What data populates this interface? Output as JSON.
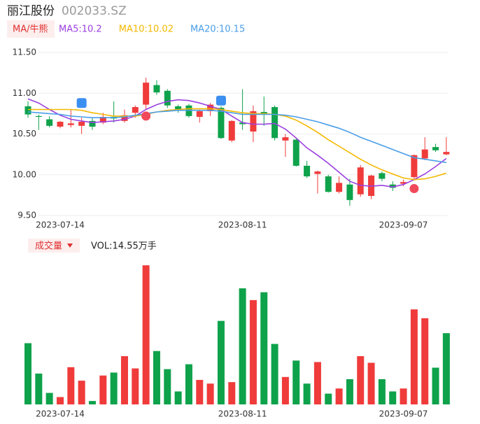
{
  "chart_data": [
    {
      "type": "candlestick",
      "title": "丽江股份",
      "subtitle": "002033.SZ",
      "legend_title": "MA/牛熊",
      "categories": [
        null,
        null,
        null,
        "2023-07-14",
        null,
        null,
        null,
        null,
        null,
        null,
        null,
        null,
        null,
        null,
        null,
        null,
        null,
        null,
        null,
        null,
        "2023-08-11",
        null,
        null,
        null,
        null,
        null,
        null,
        null,
        null,
        null,
        null,
        null,
        null,
        null,
        null,
        "2023-09-07",
        null,
        null,
        null,
        null
      ],
      "open": [
        10.84,
        10.72,
        10.68,
        10.59,
        10.61,
        10.6,
        10.66,
        10.64,
        10.71,
        10.66,
        10.76,
        10.86,
        11.1,
        11.03,
        10.84,
        10.85,
        10.71,
        10.78,
        10.82,
        10.42,
        10.64,
        10.53,
        10.77,
        10.83,
        10.42,
        10.43,
        10.11,
        10.01,
        9.98,
        9.79,
        9.88,
        9.76,
        9.74,
        10.02,
        9.88,
        9.89,
        9.97,
        10.2,
        10.34,
        10.25
      ],
      "high": [
        10.9,
        10.74,
        10.72,
        10.66,
        10.8,
        10.7,
        10.7,
        10.76,
        10.9,
        10.8,
        10.85,
        11.19,
        11.16,
        11.05,
        10.86,
        10.87,
        10.8,
        10.88,
        10.84,
        10.67,
        11.05,
        10.85,
        10.96,
        10.85,
        10.5,
        10.44,
        10.17,
        10.05,
        10.0,
        9.98,
        9.95,
        10.12,
        10.0,
        10.04,
        9.92,
        9.94,
        10.25,
        10.46,
        10.38,
        10.46
      ],
      "low": [
        10.7,
        10.55,
        10.58,
        10.57,
        10.58,
        10.5,
        10.55,
        10.62,
        10.64,
        10.64,
        10.7,
        10.8,
        10.98,
        10.82,
        10.76,
        10.7,
        10.64,
        10.72,
        10.44,
        10.4,
        10.55,
        10.4,
        10.6,
        10.42,
        10.22,
        10.1,
        9.96,
        9.77,
        9.78,
        9.77,
        9.62,
        9.73,
        9.7,
        9.92,
        9.8,
        9.86,
        9.93,
        10.18,
        10.28,
        10.24
      ],
      "close": [
        10.74,
        10.71,
        10.6,
        10.65,
        10.63,
        10.65,
        10.59,
        10.71,
        10.69,
        10.73,
        10.83,
        11.13,
        11.01,
        10.85,
        10.8,
        10.72,
        10.78,
        10.86,
        10.45,
        10.66,
        10.62,
        10.78,
        10.74,
        10.45,
        10.46,
        10.11,
        9.98,
        10.04,
        9.79,
        9.9,
        9.69,
        10.09,
        9.99,
        9.95,
        9.84,
        9.91,
        10.24,
        10.31,
        10.3,
        10.28
      ],
      "up_color": "#f03b3b",
      "down_color": "#0ea24b",
      "series": [
        {
          "name": "MA5:10.2",
          "color": "#9b3fe0",
          "values": [
            10.93,
            10.88,
            10.8,
            10.73,
            10.68,
            10.66,
            10.64,
            10.65,
            10.66,
            10.68,
            10.72,
            10.8,
            10.86,
            10.9,
            10.92,
            10.91,
            10.88,
            10.84,
            10.8,
            10.72,
            10.64,
            10.62,
            10.62,
            10.63,
            10.56,
            10.45,
            10.33,
            10.24,
            10.14,
            10.03,
            9.92,
            9.87,
            9.86,
            9.87,
            9.85,
            9.88,
            9.94,
            10.01,
            10.1,
            10.2
          ]
        },
        {
          "name": "MA10:10.02",
          "color": "#f5b800",
          "values": [
            10.8,
            10.8,
            10.8,
            10.8,
            10.8,
            10.79,
            10.76,
            10.74,
            10.72,
            10.72,
            10.72,
            10.74,
            10.77,
            10.79,
            10.8,
            10.81,
            10.81,
            10.81,
            10.8,
            10.78,
            10.76,
            10.75,
            10.75,
            10.74,
            10.72,
            10.67,
            10.6,
            10.52,
            10.43,
            10.35,
            10.27,
            10.19,
            10.12,
            10.06,
            10.01,
            9.96,
            9.94,
            9.95,
            9.98,
            10.02
          ]
        },
        {
          "name": "MA20:10.15",
          "color": "#4a9ee8",
          "values": [
            10.77,
            10.76,
            10.75,
            10.74,
            10.72,
            10.71,
            10.7,
            10.7,
            10.7,
            10.71,
            10.73,
            10.75,
            10.77,
            10.78,
            10.79,
            10.79,
            10.79,
            10.79,
            10.78,
            10.76,
            10.74,
            10.74,
            10.74,
            10.74,
            10.73,
            10.71,
            10.68,
            10.65,
            10.61,
            10.57,
            10.52,
            10.46,
            10.41,
            10.36,
            10.31,
            10.26,
            10.21,
            10.19,
            10.17,
            10.15
          ]
        }
      ],
      "ylim": [
        9.5,
        11.5
      ],
      "yticks": [
        {
          "value": 11.5,
          "label": "11.50"
        },
        {
          "value": 11,
          "label": "11.00"
        },
        {
          "value": 10.5,
          "label": "10.50"
        },
        {
          "value": 10,
          "label": "10.00"
        },
        {
          "value": 9.5,
          "label": "9.50"
        }
      ],
      "grid": true
    },
    {
      "type": "bar",
      "title": "成交量",
      "subtitle": "VOL:14.55万手",
      "categories": [
        null,
        null,
        null,
        "2023-07-14",
        null,
        null,
        null,
        null,
        null,
        null,
        null,
        null,
        null,
        null,
        null,
        null,
        null,
        null,
        null,
        null,
        "2023-08-11",
        null,
        null,
        null,
        null,
        null,
        null,
        null,
        null,
        null,
        null,
        null,
        null,
        null,
        null,
        "2023-09-07",
        null,
        null,
        null,
        null
      ],
      "values": [
        12.5,
        6.3,
        2.35,
        1.5,
        7.6,
        4.85,
        0.7,
        5.9,
        6.5,
        9.85,
        7.35,
        28.4,
        10.9,
        7.2,
        2.65,
        8.2,
        5.0,
        4.25,
        17.05,
        4.55,
        23.7,
        21.3,
        22.9,
        12.35,
        5.6,
        8.95,
        4.25,
        8.65,
        2.2,
        3.25,
        5.15,
        9.85,
        8.5,
        5.15,
        2.65,
        3.25,
        19.4,
        17.6,
        7.5,
        14.55
      ],
      "colors": [
        "#0ea24b",
        "#0ea24b",
        "#0ea24b",
        "#f03b3b",
        "#f03b3b",
        "#f03b3b",
        "#0ea24b",
        "#f03b3b",
        "#0ea24b",
        "#f03b3b",
        "#f03b3b",
        "#f03b3b",
        "#0ea24b",
        "#0ea24b",
        "#0ea24b",
        "#0ea24b",
        "#f03b3b",
        "#f03b3b",
        "#0ea24b",
        "#f03b3b",
        "#0ea24b",
        "#f03b3b",
        "#0ea24b",
        "#0ea24b",
        "#f03b3b",
        "#0ea24b",
        "#0ea24b",
        "#f03b3b",
        "#0ea24b",
        "#f03b3b",
        "#0ea24b",
        "#f03b3b",
        "#f03b3b",
        "#0ea24b",
        "#0ea24b",
        "#f03b3b",
        "#f03b3b",
        "#f03b3b",
        "#0ea24b",
        "#0ea24b"
      ],
      "ylim": [
        0,
        29
      ]
    }
  ]
}
